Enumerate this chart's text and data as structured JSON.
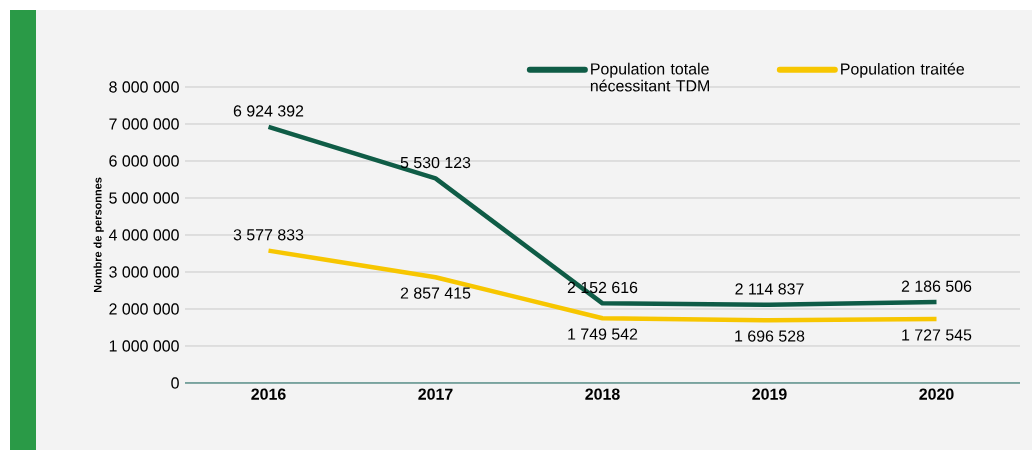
{
  "chart_data": {
    "type": "line",
    "ylabel": "Nombre de personnes",
    "categories": [
      "2016",
      "2017",
      "2018",
      "2019",
      "2020"
    ],
    "series": [
      {
        "name": "Population totale nécessitant TDM",
        "color": "#0f5c46",
        "values": [
          6924392,
          5530123,
          2152616,
          2114837,
          2186506
        ],
        "value_labels": [
          "6 924 392",
          "5 530 123",
          "2 152 616",
          "2 114 837",
          "2 186 506"
        ]
      },
      {
        "name": "Population traitée",
        "color": "#f7c600",
        "values": [
          3577833,
          2857415,
          1749542,
          1696528,
          1727545
        ],
        "value_labels": [
          "3 577 833",
          "2 857 415",
          "1 749 542",
          "1 696 528",
          "1 727 545"
        ]
      }
    ],
    "ylim": [
      0,
      8000000
    ],
    "yticks": [
      {
        "value": 0,
        "label": "0"
      },
      {
        "value": 1000000,
        "label": "1 000 000"
      },
      {
        "value": 2000000,
        "label": "2 000 000"
      },
      {
        "value": 3000000,
        "label": "3 000 000"
      },
      {
        "value": 4000000,
        "label": "4 000 000"
      },
      {
        "value": 5000000,
        "label": "5 000 000"
      },
      {
        "value": 6000000,
        "label": "6 000 000"
      },
      {
        "value": 7000000,
        "label": "7 000 000"
      },
      {
        "value": 8000000,
        "label": "8 000 000"
      }
    ],
    "grid": "y",
    "legend": "top right"
  }
}
